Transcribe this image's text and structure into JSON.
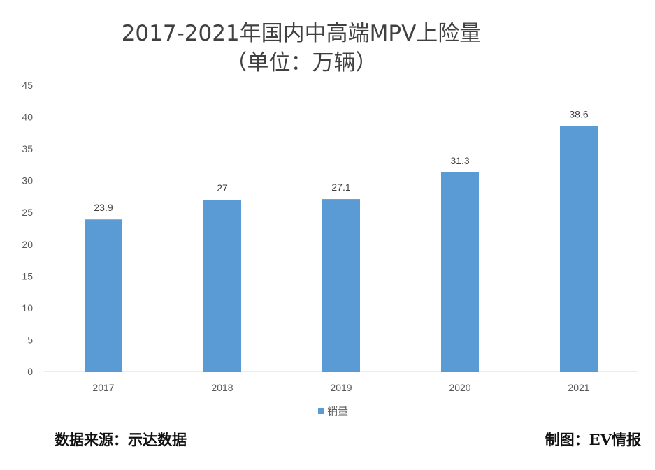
{
  "title_line1": "2017-2021年国内中高端MPV上险量",
  "title_line2": "（单位：万辆）",
  "footer": {
    "source": "数据来源：示达数据",
    "credit": "制图：EV情报"
  },
  "chart_data": {
    "type": "bar",
    "categories": [
      "2017",
      "2018",
      "2019",
      "2020",
      "2021"
    ],
    "series": [
      {
        "name": "销量",
        "values": [
          23.9,
          27,
          27.1,
          31.3,
          38.6
        ],
        "color": "#5b9bd5"
      }
    ],
    "data_labels": [
      "23.9",
      "27",
      "27.1",
      "31.3",
      "38.6"
    ],
    "y_ticks": [
      "0",
      "5",
      "10",
      "15",
      "20",
      "25",
      "30",
      "35",
      "40",
      "45"
    ],
    "ylim": [
      0,
      45
    ],
    "grid": false,
    "legend_position": "bottom"
  }
}
